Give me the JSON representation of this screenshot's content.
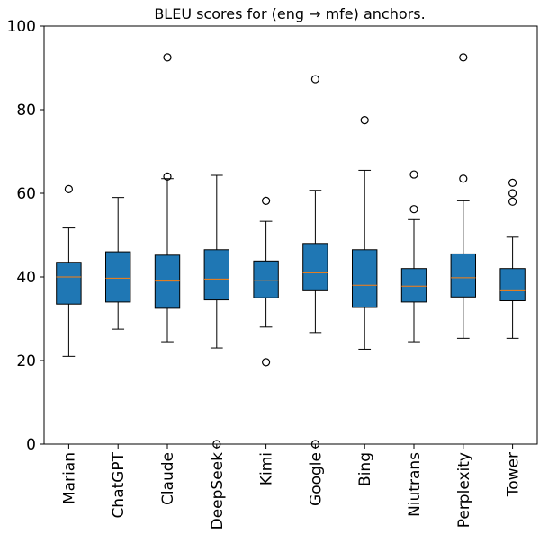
{
  "chart_data": {
    "type": "box",
    "title": "BLEU scores for (eng → mfe) anchors.",
    "xlabel": "",
    "ylabel": "",
    "ylim": [
      0,
      100
    ],
    "yticks": [
      0,
      20,
      40,
      60,
      80,
      100
    ],
    "grid": false,
    "colors": {
      "box_fill": "#1f77b4",
      "median": "#ff7f0e",
      "stroke": "#000000"
    },
    "categories": [
      "Marian",
      "ChatGPT",
      "Claude",
      "DeepSeek",
      "Kimi",
      "Google",
      "Bing",
      "Niutrans",
      "Perplexity",
      "Tower"
    ],
    "boxes": [
      {
        "q1": 33.5,
        "median": 40.0,
        "q3": 43.5,
        "whisker_low": 21.0,
        "whisker_high": 51.7,
        "outliers": [
          61.0
        ]
      },
      {
        "q1": 34.0,
        "median": 39.7,
        "q3": 46.0,
        "whisker_low": 27.5,
        "whisker_high": 59.0,
        "outliers": []
      },
      {
        "q1": 32.5,
        "median": 39.0,
        "q3": 45.2,
        "whisker_low": 24.5,
        "whisker_high": 63.5,
        "outliers": [
          64.0,
          92.5
        ]
      },
      {
        "q1": 34.5,
        "median": 39.5,
        "q3": 46.5,
        "whisker_low": 23.0,
        "whisker_high": 64.3,
        "outliers": [
          0.0
        ]
      },
      {
        "q1": 35.0,
        "median": 39.2,
        "q3": 43.8,
        "whisker_low": 28.0,
        "whisker_high": 53.3,
        "outliers": [
          58.2,
          19.6
        ]
      },
      {
        "q1": 36.7,
        "median": 41.0,
        "q3": 48.0,
        "whisker_low": 26.7,
        "whisker_high": 60.7,
        "outliers": [
          87.3,
          0.0
        ]
      },
      {
        "q1": 32.7,
        "median": 38.0,
        "q3": 46.5,
        "whisker_low": 22.7,
        "whisker_high": 65.5,
        "outliers": [
          77.5
        ]
      },
      {
        "q1": 34.0,
        "median": 37.8,
        "q3": 42.0,
        "whisker_low": 24.5,
        "whisker_high": 53.7,
        "outliers": [
          64.5,
          56.2
        ]
      },
      {
        "q1": 35.2,
        "median": 39.8,
        "q3": 45.5,
        "whisker_low": 25.3,
        "whisker_high": 58.2,
        "outliers": [
          63.5,
          92.5
        ]
      },
      {
        "q1": 34.3,
        "median": 36.7,
        "q3": 42.0,
        "whisker_low": 25.3,
        "whisker_high": 49.5,
        "outliers": [
          62.5,
          60.0,
          58.0
        ]
      }
    ]
  }
}
